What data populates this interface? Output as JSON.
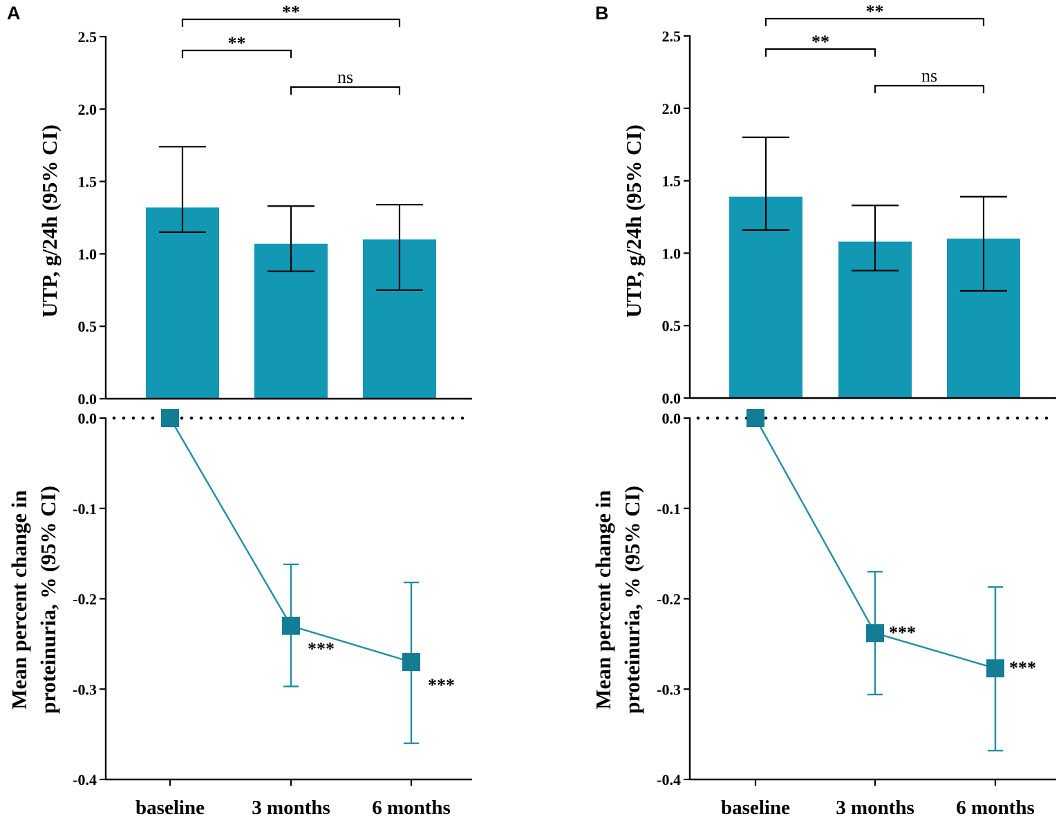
{
  "chart_data": [
    {
      "panel": "A",
      "charts": [
        {
          "type": "bar",
          "ylabel": "UTP, g/24h (95% CI)",
          "ylim": [
            0,
            2.5
          ],
          "yticks": [
            "0.0",
            "0.5",
            "1.0",
            "1.5",
            "2.0",
            "2.5"
          ],
          "categories": [
            "baseline",
            "3 months",
            "6 months"
          ],
          "values": [
            1.32,
            1.07,
            1.1
          ],
          "ci_low": [
            1.15,
            0.88,
            0.75
          ],
          "ci_high": [
            1.74,
            1.33,
            1.34
          ],
          "comparisons": [
            {
              "from": 0,
              "to": 2,
              "label": "**"
            },
            {
              "from": 0,
              "to": 1,
              "label": "**"
            },
            {
              "from": 1,
              "to": 2,
              "label": "ns"
            }
          ]
        },
        {
          "type": "line",
          "ylabel_lines": [
            "Mean percent change in",
            "proteinuria, % (95% CI)"
          ],
          "ylim": [
            -0.4,
            0.0
          ],
          "yticks": [
            "0.0",
            "-0.1",
            "-0.2",
            "-0.3",
            "-0.4"
          ],
          "categories": [
            "baseline",
            "3 months",
            "6 months"
          ],
          "values": [
            0.0,
            -0.23,
            -0.27
          ],
          "ci_low": [
            0.0,
            -0.297,
            -0.36
          ],
          "ci_high": [
            0.0,
            -0.162,
            -0.182
          ],
          "point_labels": [
            "",
            "***",
            "***"
          ],
          "reference_line": 0.0
        }
      ]
    },
    {
      "panel": "B",
      "charts": [
        {
          "type": "bar",
          "ylabel": "UTP, g/24h (95% CI)",
          "ylim": [
            0,
            2.5
          ],
          "yticks": [
            "0.0",
            "0.5",
            "1.0",
            "1.5",
            "2.0",
            "2.5"
          ],
          "categories": [
            "baseline",
            "3 months",
            "6 months"
          ],
          "values": [
            1.39,
            1.08,
            1.1
          ],
          "ci_low": [
            1.16,
            0.88,
            0.74
          ],
          "ci_high": [
            1.8,
            1.33,
            1.39
          ],
          "comparisons": [
            {
              "from": 0,
              "to": 2,
              "label": "**"
            },
            {
              "from": 0,
              "to": 1,
              "label": "**"
            },
            {
              "from": 1,
              "to": 2,
              "label": "ns"
            }
          ]
        },
        {
          "type": "line",
          "ylabel_lines": [
            "Mean percent change in",
            "proteinuria, % (95% CI)"
          ],
          "ylim": [
            -0.4,
            0.0
          ],
          "yticks": [
            "0.0",
            "-0.1",
            "-0.2",
            "-0.3",
            "-0.4"
          ],
          "categories": [
            "baseline",
            "3 months",
            "6 months"
          ],
          "values": [
            0.0,
            -0.238,
            -0.277
          ],
          "ci_low": [
            0.0,
            -0.306,
            -0.368
          ],
          "ci_high": [
            0.0,
            -0.17,
            -0.187
          ],
          "point_labels": [
            "",
            "***",
            "***"
          ],
          "reference_line": 0.0
        }
      ]
    }
  ],
  "colors": {
    "bar_fill": "#1398B4",
    "line": "#1E8DA5",
    "marker": "#137D96",
    "axis": "#000000"
  }
}
